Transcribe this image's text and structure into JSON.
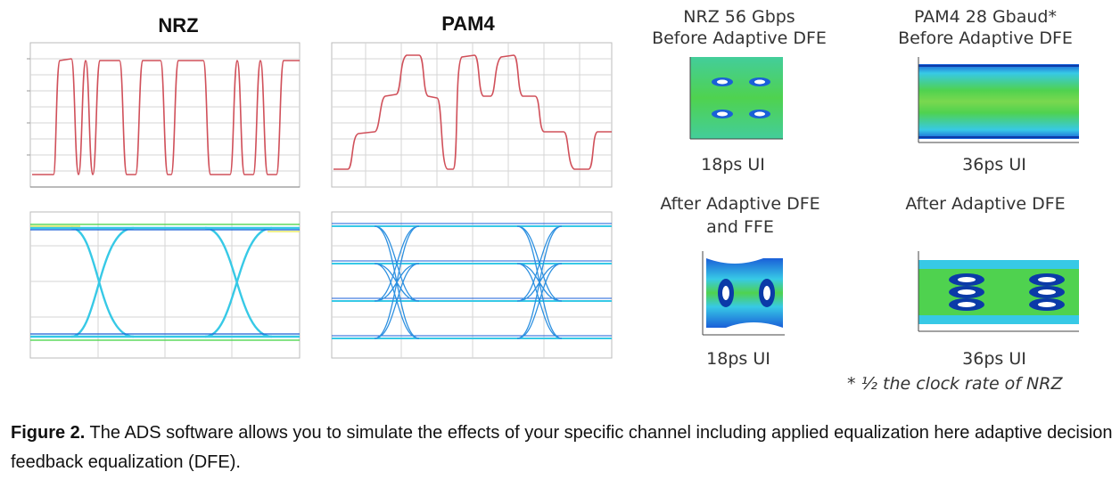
{
  "headings": {
    "nrz": "NRZ",
    "pam4": "PAM4"
  },
  "right_panels": {
    "nrz_title": "NRZ 56 Gbps",
    "nrz_subtitle": "Before Adaptive DFE",
    "pam4_title": "PAM4 28 Gbaud*",
    "pam4_subtitle": "Before Adaptive DFE",
    "nrz_after_line1": "After Adaptive DFE",
    "nrz_after_line2": "and FFE",
    "pam4_after": "After Adaptive DFE",
    "ui_nrz_top": "18ps UI",
    "ui_pam4_top": "36ps UI",
    "ui_nrz_bottom": "18ps UI",
    "ui_pam4_bottom": "36ps UI",
    "footnote": "* ½ the clock rate of NRZ"
  },
  "caption": {
    "label": "Figure 2.",
    "text": " The ADS software allows you to simulate the effects of your specific channel including applied equalization here adaptive decision feedback equalization (DFE)."
  },
  "colors": {
    "waveform": "#d0505a",
    "grid": "#c8c8c8",
    "eye_blue": "#1a5fd8",
    "eye_green": "#3fd23f",
    "eye_cyan": "#37c9e6",
    "title_red": "#c0392b"
  }
}
